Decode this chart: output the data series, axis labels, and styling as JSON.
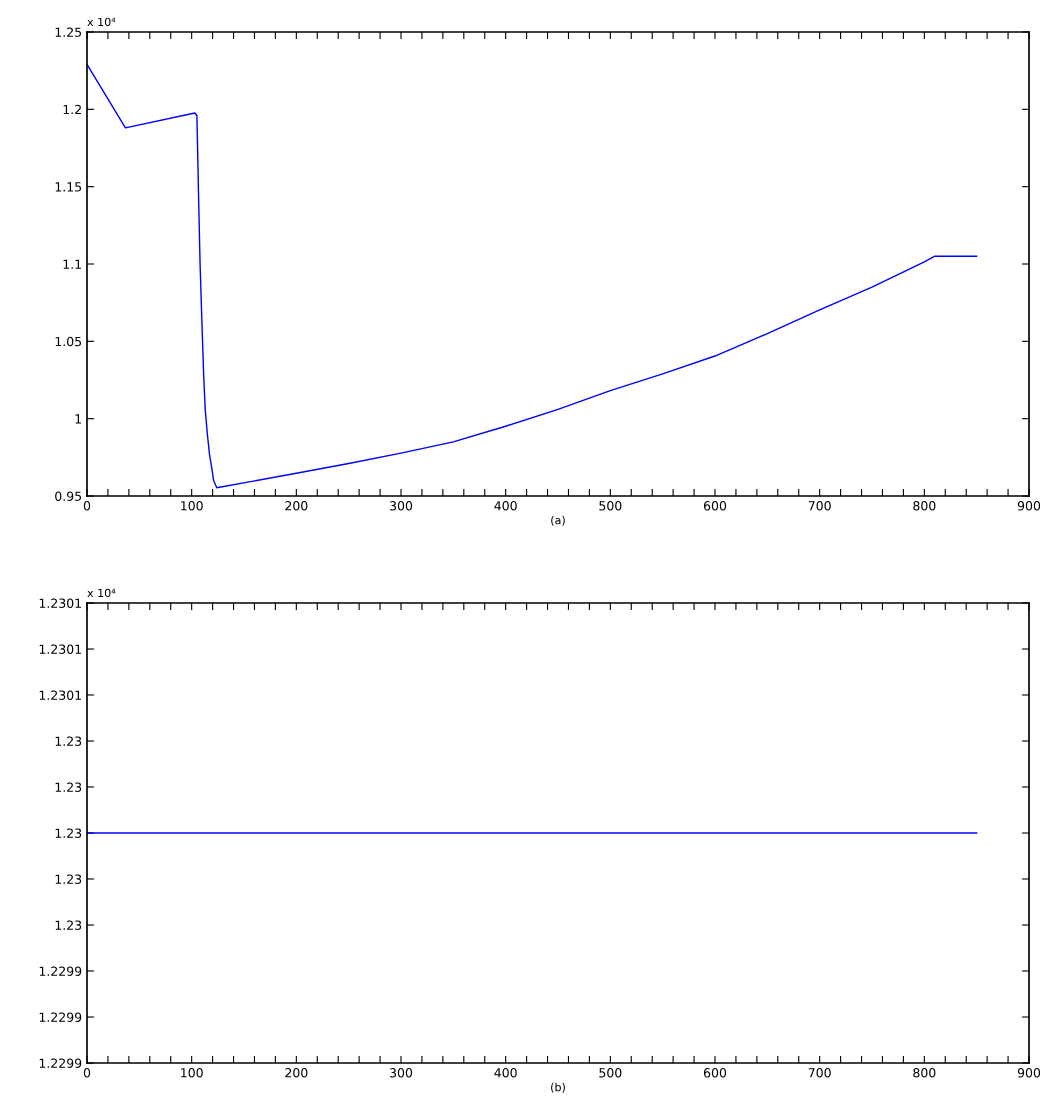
{
  "chart_data": [
    {
      "type": "line",
      "xlabel": "(a)",
      "annotations": [
        "x 10⁴"
      ],
      "series": [
        {
          "color": "#0000ff",
          "x": [
            0,
            36.7,
            103,
            105,
            105.5,
            106.5,
            108,
            110,
            111.5,
            113,
            115,
            117,
            119,
            121,
            124,
            200,
            250,
            300,
            350,
            400,
            450,
            500,
            550,
            600,
            650,
            700,
            750,
            800,
            810,
            850
          ],
          "values": [
            1.229,
            1.188,
            1.1976,
            1.196,
            1.18,
            1.147,
            1.101,
            1.058,
            1.0276,
            1.0055,
            0.99,
            0.977,
            0.969,
            0.96,
            0.9553,
            0.9647,
            0.971,
            0.9777,
            0.985,
            0.9951,
            1.006,
            1.0181,
            1.029,
            1.0405,
            1.055,
            1.0704,
            1.085,
            1.1014,
            1.1051,
            1.105
          ]
        }
      ],
      "xlim": [
        0,
        900
      ],
      "ylim": [
        0.95,
        1.25
      ],
      "xticks": [
        0,
        {
          "value": 20,
          "label": null
        },
        {
          "value": 40,
          "label": null
        },
        {
          "value": 60,
          "label": null
        },
        {
          "value": 80,
          "label": null
        },
        100,
        {
          "value": 120,
          "label": null
        },
        {
          "value": 140,
          "label": null
        },
        {
          "value": 160,
          "label": null
        },
        {
          "value": 180,
          "label": null
        },
        200,
        {
          "value": 220,
          "label": null
        },
        {
          "value": 240,
          "label": null
        },
        {
          "value": 260,
          "label": null
        },
        {
          "value": 280,
          "label": null
        },
        300,
        {
          "value": 320,
          "label": null
        },
        {
          "value": 340,
          "label": null
        },
        {
          "value": 360,
          "label": null
        },
        {
          "value": 380,
          "label": null
        },
        400,
        {
          "value": 420,
          "label": null
        },
        {
          "value": 440,
          "label": null
        },
        {
          "value": 460,
          "label": null
        },
        {
          "value": 480,
          "label": null
        },
        500,
        {
          "value": 520,
          "label": null
        },
        {
          "value": 540,
          "label": null
        },
        {
          "value": 560,
          "label": null
        },
        {
          "value": 580,
          "label": null
        },
        600,
        {
          "value": 620,
          "label": null
        },
        {
          "value": 640,
          "label": null
        },
        {
          "value": 660,
          "label": null
        },
        {
          "value": 680,
          "label": null
        },
        700,
        {
          "value": 720,
          "label": null
        },
        {
          "value": 740,
          "label": null
        },
        {
          "value": 760,
          "label": null
        },
        {
          "value": 780,
          "label": null
        },
        800,
        {
          "value": 820,
          "label": null
        },
        {
          "value": 840,
          "label": null
        },
        {
          "value": 860,
          "label": null
        },
        {
          "value": 880,
          "label": null
        },
        900
      ],
      "yticks": [
        0.95,
        {
          "value": 1,
          "label": "1"
        },
        1.05,
        {
          "value": 1.1,
          "label": "1.1"
        },
        1.15,
        {
          "value": 1.2,
          "label": "1.2"
        },
        1.25
      ],
      "grid": false,
      "legend": false,
      "line_style": "solid",
      "marker": "none"
    },
    {
      "type": "line",
      "xlabel": "(b)",
      "annotations": [
        "x 10⁴"
      ],
      "series": [
        {
          "color": "#0000ff",
          "x": [
            0,
            850
          ],
          "values": [
            1.23,
            1.23
          ]
        }
      ],
      "xlim": [
        0,
        900
      ],
      "ylim": [
        1.2299,
        1.2301
      ],
      "xticks": [
        0,
        {
          "value": 20,
          "label": null
        },
        {
          "value": 40,
          "label": null
        },
        {
          "value": 60,
          "label": null
        },
        {
          "value": 80,
          "label": null
        },
        100,
        {
          "value": 120,
          "label": null
        },
        {
          "value": 140,
          "label": null
        },
        {
          "value": 160,
          "label": null
        },
        {
          "value": 180,
          "label": null
        },
        200,
        {
          "value": 220,
          "label": null
        },
        {
          "value": 240,
          "label": null
        },
        {
          "value": 260,
          "label": null
        },
        {
          "value": 280,
          "label": null
        },
        300,
        {
          "value": 320,
          "label": null
        },
        {
          "value": 340,
          "label": null
        },
        {
          "value": 360,
          "label": null
        },
        {
          "value": 380,
          "label": null
        },
        400,
        {
          "value": 420,
          "label": null
        },
        {
          "value": 440,
          "label": null
        },
        {
          "value": 460,
          "label": null
        },
        {
          "value": 480,
          "label": null
        },
        500,
        {
          "value": 520,
          "label": null
        },
        {
          "value": 540,
          "label": null
        },
        {
          "value": 560,
          "label": null
        },
        {
          "value": 580,
          "label": null
        },
        600,
        {
          "value": 620,
          "label": null
        },
        {
          "value": 640,
          "label": null
        },
        {
          "value": 660,
          "label": null
        },
        {
          "value": 680,
          "label": null
        },
        700,
        {
          "value": 720,
          "label": null
        },
        {
          "value": 740,
          "label": null
        },
        {
          "value": 760,
          "label": null
        },
        {
          "value": 780,
          "label": null
        },
        800,
        {
          "value": 820,
          "label": null
        },
        {
          "value": 840,
          "label": null
        },
        {
          "value": 860,
          "label": null
        },
        {
          "value": 880,
          "label": null
        },
        900
      ],
      "yticks": [
        1.2299,
        {
          "value": 1.22992,
          "label": "1.2299"
        },
        {
          "value": 1.22994,
          "label": "1.2299"
        },
        {
          "value": 1.22996,
          "label": "1.23"
        },
        {
          "value": 1.22998,
          "label": "1.23"
        },
        {
          "value": 1.23,
          "label": "1.23"
        },
        {
          "value": 1.23002,
          "label": "1.23"
        },
        {
          "value": 1.23004,
          "label": "1.23"
        },
        {
          "value": 1.23006,
          "label": "1.2301"
        },
        {
          "value": 1.23008,
          "label": "1.2301"
        },
        {
          "value": 1.2301,
          "label": "1.2301"
        }
      ],
      "grid": false,
      "legend": false,
      "line_style": "solid",
      "marker": "none"
    }
  ]
}
